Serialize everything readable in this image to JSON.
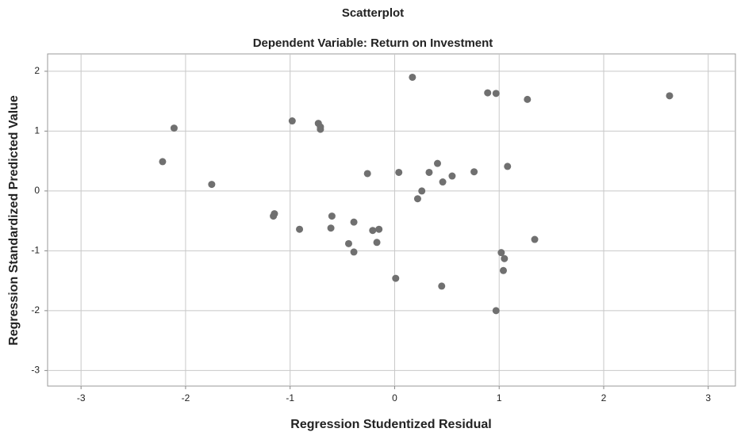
{
  "chart_data": {
    "type": "scatter",
    "title": "Scatterplot",
    "subtitle": "Dependent Variable: Return on Investment",
    "x_label": "Regression Studentized Residual",
    "y_label": "Regression Standardized Predicted Value",
    "x": [
      -2.22,
      -2.11,
      -1.75,
      -1.16,
      -1.15,
      -0.91,
      -0.98,
      -0.73,
      -0.71,
      -0.71,
      -0.6,
      -0.61,
      -0.44,
      -0.39,
      -0.39,
      -0.26,
      -0.21,
      -0.15,
      -0.17,
      0.01,
      0.04,
      0.17,
      0.22,
      0.26,
      0.33,
      0.41,
      0.46,
      0.45,
      0.55,
      0.76,
      0.89,
      0.97,
      0.97,
      1.02,
      1.05,
      1.04,
      1.08,
      1.27,
      1.34,
      2.63
    ],
    "values": [
      0.49,
      1.05,
      0.11,
      -0.42,
      -0.38,
      -0.64,
      1.17,
      1.13,
      1.07,
      1.03,
      -0.42,
      -0.62,
      -0.88,
      -1.02,
      -0.52,
      0.29,
      -0.66,
      -0.64,
      -0.86,
      -1.46,
      0.31,
      1.9,
      -0.13,
      0.0,
      0.31,
      0.46,
      0.15,
      -1.59,
      0.25,
      0.32,
      1.64,
      1.63,
      -2.0,
      -1.03,
      -1.13,
      -1.33,
      0.41,
      1.53,
      -0.81,
      1.59
    ],
    "color": "#707070",
    "xlim": [
      -3.32,
      3.26
    ],
    "xticks": [
      -3,
      -2,
      -1,
      0,
      1,
      2,
      3
    ],
    "ylim": [
      -3.26,
      2.29
    ],
    "yticks": [
      -3,
      -2,
      -1,
      0,
      1,
      2
    ],
    "grid": true
  }
}
